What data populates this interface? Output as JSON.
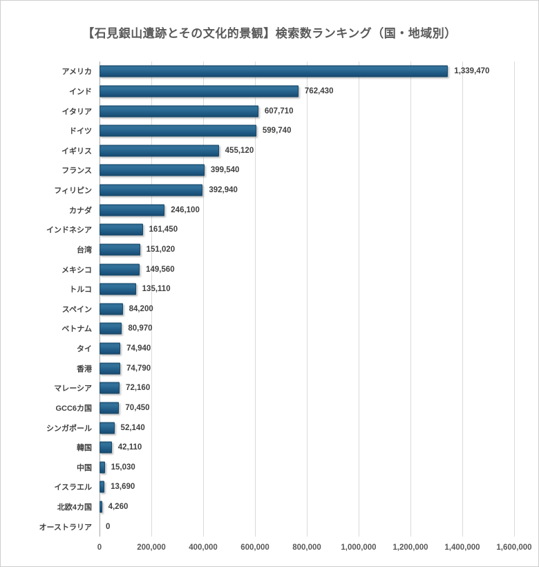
{
  "chart_data": {
    "type": "bar",
    "orientation": "horizontal",
    "title": "【石見銀山遺跡とその文化的景観】検索数ランキング（国・地域別）",
    "categories": [
      "アメリカ",
      "インド",
      "イタリア",
      "ドイツ",
      "イギリス",
      "フランス",
      "フィリピン",
      "カナダ",
      "インドネシア",
      "台湾",
      "メキシコ",
      "トルコ",
      "スペイン",
      "ベトナム",
      "タイ",
      "香港",
      "マレーシア",
      "GCC6カ国",
      "シンガポール",
      "韓国",
      "中国",
      "イスラエル",
      "北欧4カ国",
      "オーストラリア"
    ],
    "values": [
      1339470,
      762430,
      607710,
      599740,
      455120,
      399540,
      392940,
      246100,
      161450,
      151020,
      149560,
      135110,
      84200,
      80970,
      74940,
      74790,
      72160,
      70450,
      52140,
      42110,
      15030,
      13690,
      4260,
      0
    ],
    "value_labels": [
      "1,339,470",
      "762,430",
      "607,710",
      "599,740",
      "455,120",
      "399,540",
      "392,940",
      "246,100",
      "161,450",
      "151,020",
      "149,560",
      "135,110",
      "84,200",
      "80,970",
      "74,940",
      "74,790",
      "72,160",
      "70,450",
      "52,140",
      "42,110",
      "15,030",
      "13,690",
      "4,260",
      "0"
    ],
    "xlabel": "",
    "ylabel": "",
    "xlim": [
      0,
      1600000
    ],
    "x_tick_values": [
      0,
      200000,
      400000,
      600000,
      800000,
      1000000,
      1200000,
      1400000,
      1600000
    ],
    "x_tick_labels": [
      "0",
      "200,000",
      "400,000",
      "600,000",
      "800,000",
      "1,000,000",
      "1,200,000",
      "1,400,000",
      "1,600,000"
    ],
    "grid": "vertical",
    "legend": "none",
    "colors": {
      "bar_fill": "#25618a",
      "bar_border": "#16486a",
      "gridline": "#d9d9d9",
      "zero_axis_line": "#a6a6a6",
      "title_text": "#595959",
      "label_text": "#404040",
      "tick_text": "#595959",
      "background": "#ffffff",
      "frame_border": "#cdcdcd"
    }
  }
}
